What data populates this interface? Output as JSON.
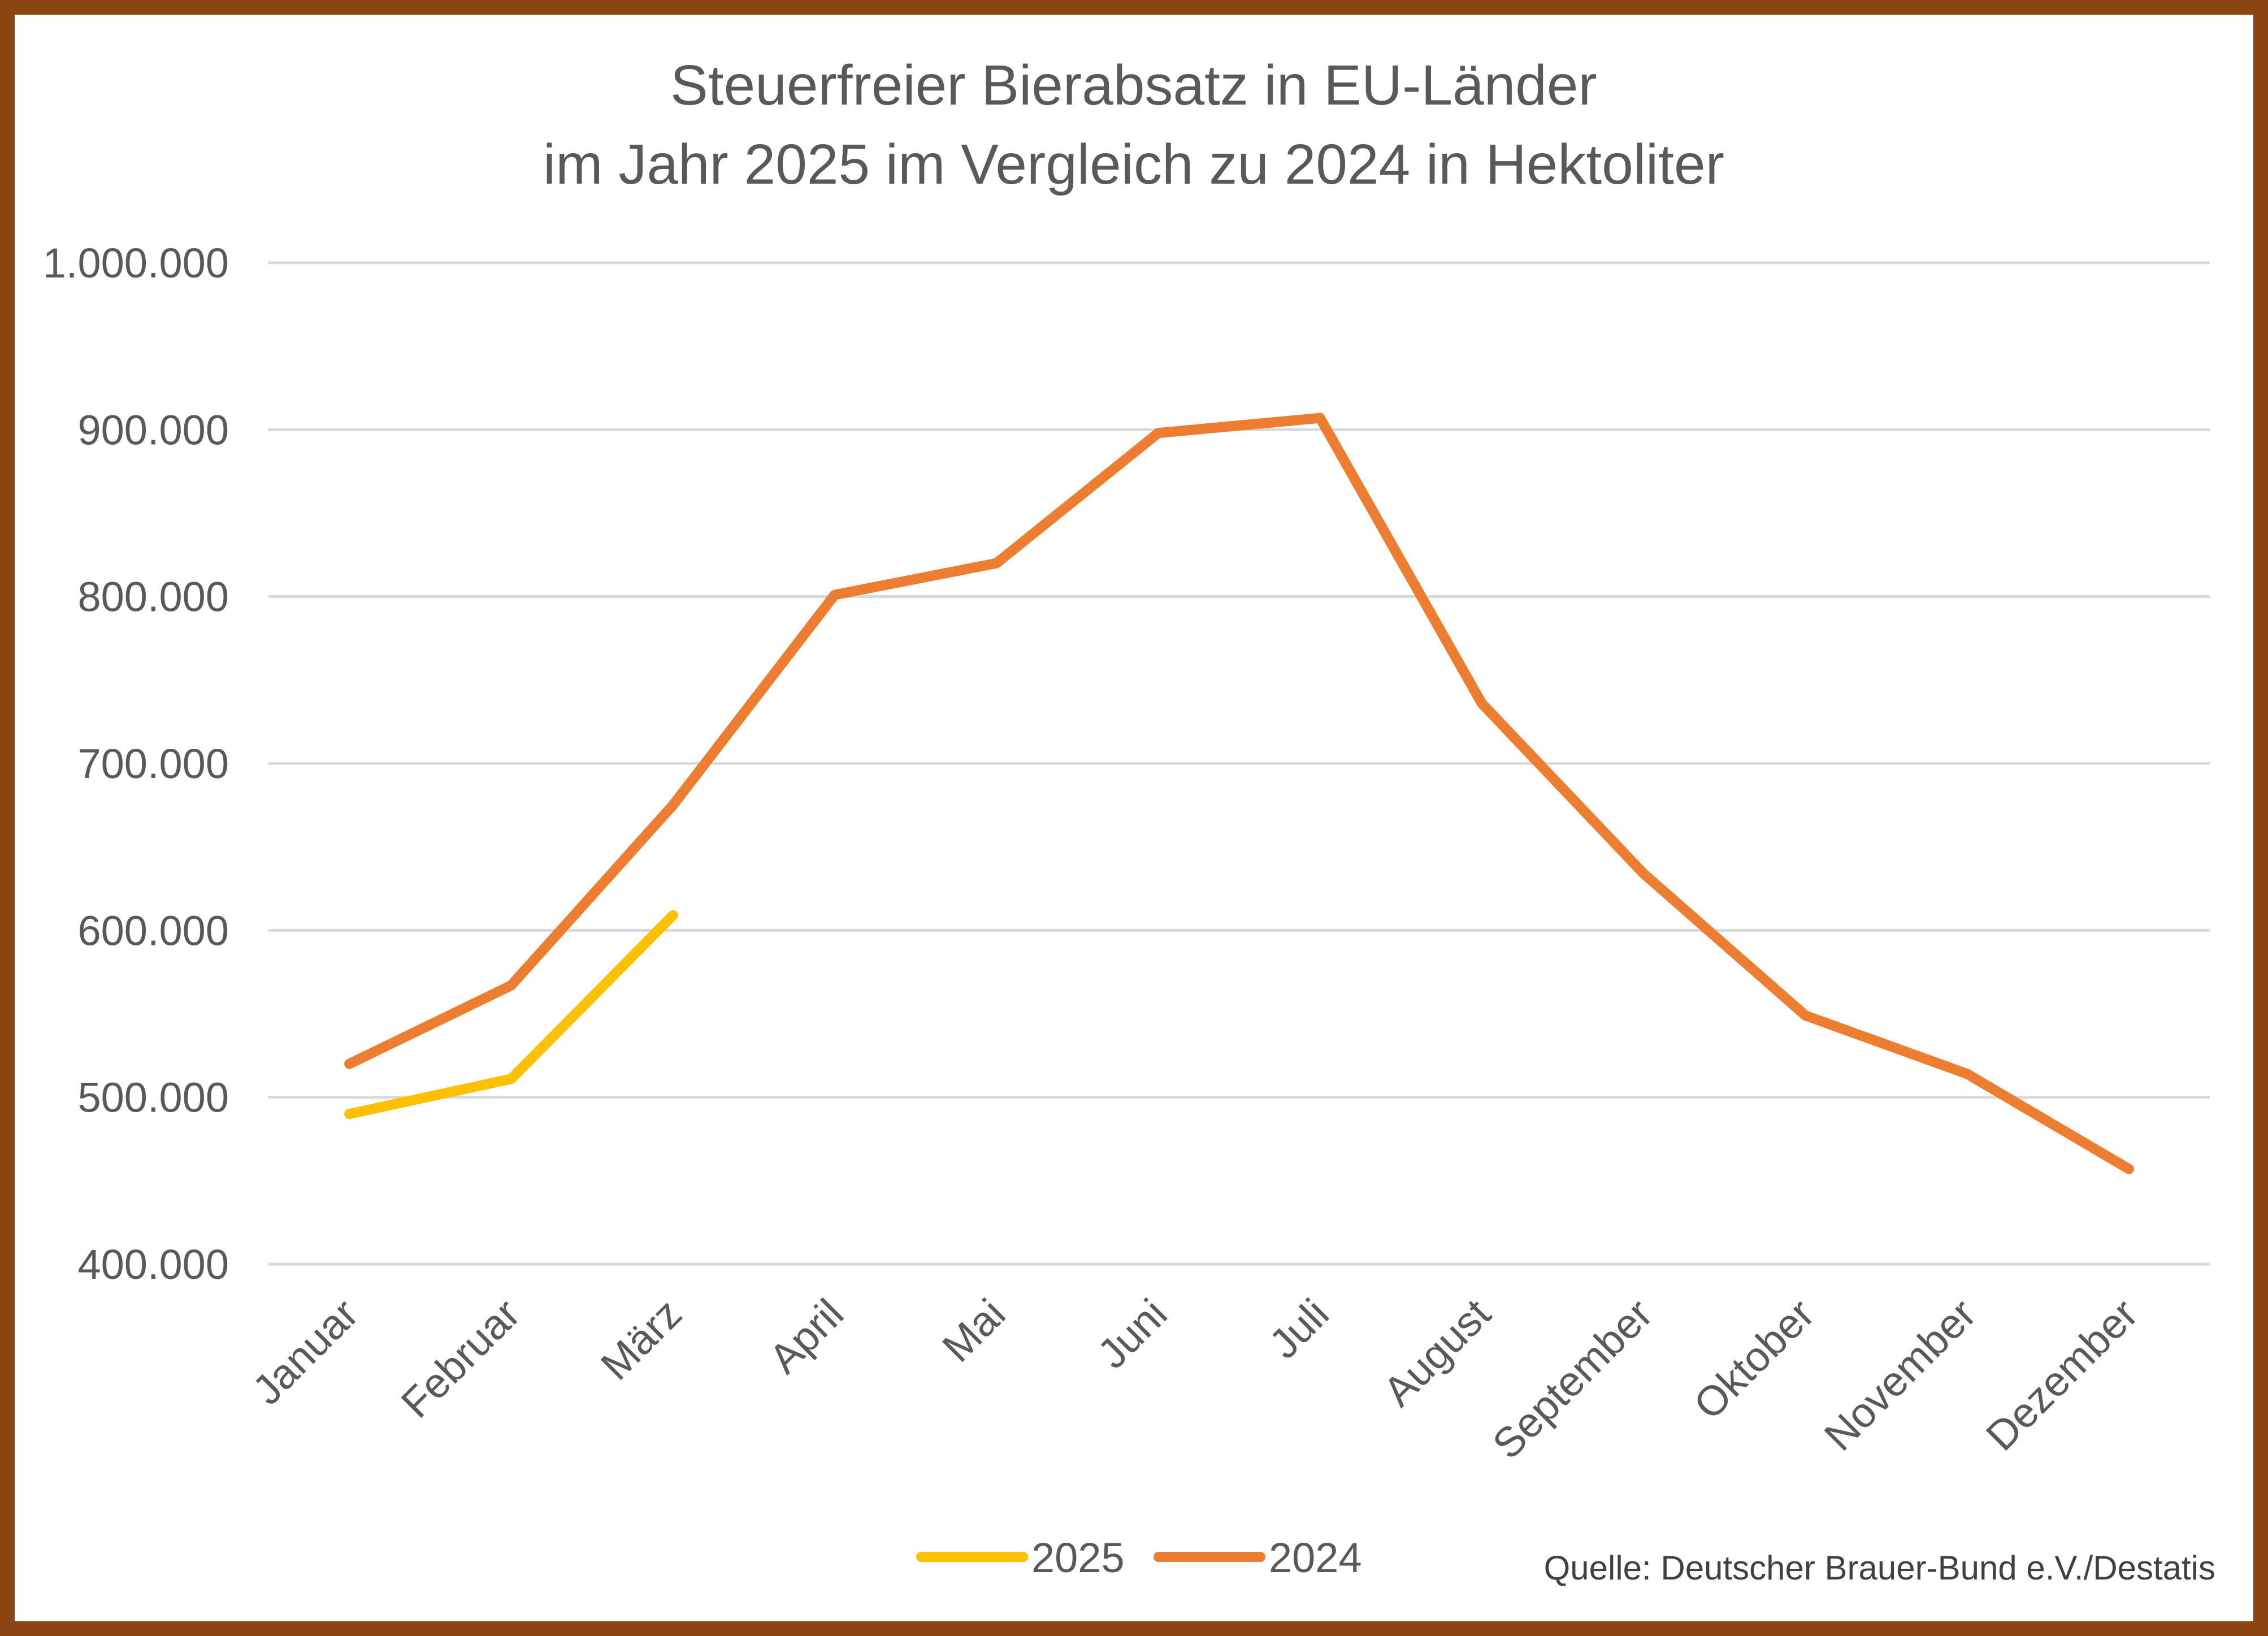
{
  "chart_data": {
    "type": "line",
    "title": "Steuerfreier Bierabsatz in EU-Länder",
    "subtitle": "im Jahr 2025 im Vergleich zu 2024 in Hektoliter",
    "categories": [
      "Januar",
      "Februar",
      "März",
      "April",
      "Mai",
      "Juni",
      "Juli",
      "August",
      "September",
      "Oktober",
      "November",
      "Dezember"
    ],
    "ylim": [
      400000,
      1000000
    ],
    "yticks": [
      1000000,
      900000,
      800000,
      700000,
      600000,
      500000,
      400000
    ],
    "ytick_labels": [
      "1.000.000",
      "900.000",
      "800.000",
      "700.000",
      "600.000",
      "500.000",
      "400.000"
    ],
    "grid": true,
    "legend_position": "bottom",
    "series": [
      {
        "name": "2025",
        "color": "#FFC000",
        "values": [
          490000,
          511000,
          609000,
          null,
          null,
          null,
          null,
          null,
          null,
          null,
          null,
          null
        ]
      },
      {
        "name": "2024",
        "color": "#ED7D31",
        "values": [
          520000,
          567000,
          675000,
          801000,
          820000,
          898000,
          907000,
          736000,
          634000,
          549000,
          514000,
          457000
        ]
      }
    ],
    "source": "Quelle: Deutscher Brauer-Bund e.V./Destatis"
  }
}
